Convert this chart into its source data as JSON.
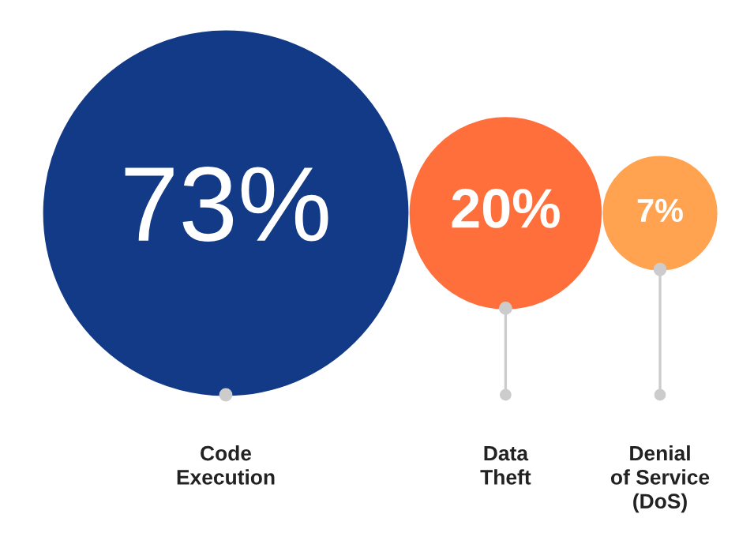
{
  "chart_data": {
    "type": "other",
    "categories": [
      "Code\nExecution",
      "Data\nTheft",
      "Denial\nof Service\n(DoS)"
    ],
    "values": [
      73,
      20,
      7
    ],
    "value_labels": [
      "73%",
      "20%",
      "7%"
    ],
    "colors": [
      "#123a87",
      "#ff6f3c",
      "#ffa351"
    ]
  }
}
